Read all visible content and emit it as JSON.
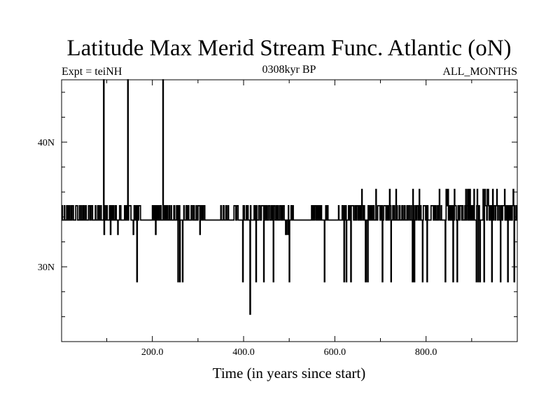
{
  "chart_data": {
    "type": "line",
    "title": "Latitude Max Merid Stream Func. Atlantic (oN)",
    "left_label": "Expt = teiNH",
    "center_label": "0308kyr BP",
    "right_label": "ALL_MONTHS",
    "xlabel": "Time (in years since start)",
    "ylabel": "",
    "xlim": [
      1,
      1000
    ],
    "ylim": [
      24.0,
      45.0
    ],
    "x_ticks": [
      200,
      400,
      600,
      800
    ],
    "x_tick_labels": [
      "200.0",
      "400.0",
      "600.0",
      "800.0"
    ],
    "y_ticks": [
      30,
      40
    ],
    "y_tick_labels": [
      "30N",
      "40N"
    ],
    "baseline": 33.75,
    "levels": {
      "high": 34.9,
      "higher": 36.2,
      "low": 32.6,
      "lower": 28.8
    },
    "series": [
      {
        "name": "teiNH",
        "x": [
          90,
          93,
          94,
          145,
          146,
          222,
          223,
          413,
          414,
          417
        ],
        "y": [
          33.75,
          45.0,
          32.6,
          33.75,
          45.0,
          33.75,
          45.0,
          33.75,
          26.2,
          33.75
        ],
        "note": "baseline 33.75 with frequent steps to 34.9/36.2 and dips to 32.6/28.8; major excursions listed"
      }
    ]
  }
}
